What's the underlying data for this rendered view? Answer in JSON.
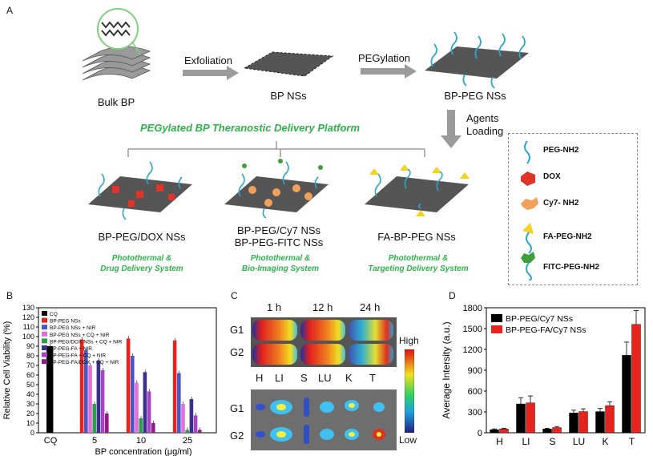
{
  "panelA": {
    "letter": "A",
    "bulk": "Bulk BP",
    "exfoliation": "Exfoliation",
    "bpns": "BP NSs",
    "pegylation": "PEGylation",
    "bppeg": "BP-PEG NSs",
    "agents": "Agents",
    "loading": "Loading",
    "platform": "PEGylated BP Theranostic Delivery Platform",
    "prod1": "BP-PEG/DOX NSs",
    "prod2a": "BP-PEG/Cy7 NSs",
    "prod2b": "BP-PEG-FITC NSs",
    "prod3": "FA-BP-PEG NSs",
    "sys1a": "Photothermal &",
    "sys1b": "Drug Delivery System",
    "sys2a": "Photothermal &",
    "sys2b": "Bio-Imaging System",
    "sys3a": "Photothermal &",
    "sys3b": "Targeting Delivery System",
    "legend": [
      "PEG-NH2",
      "DOX",
      "Cy7- NH2",
      "FA-PEG-NH2",
      "FITC-PEG-NH2"
    ],
    "colors": {
      "green": "#2db34a",
      "dox": "#e0342a",
      "cy7": "#f2a05a",
      "fa": "#f5d21c",
      "fitc": "#3f9e3a",
      "peg": "#2ba8c9"
    }
  },
  "panelB": {
    "letter": "B",
    "legend": [
      "CQ",
      "BP-PEG NSs",
      "BP-PEG NSs + NIR",
      "BP-PEG NSs + CQ + NIR",
      "BP-PEG/DOX NSs + CQ + NIR",
      "BP-PEG-FA + NIR",
      "BP-PEG-FA + CQ + NIR",
      "BP-PEG-FA/DOX + CQ + NIR"
    ]
  },
  "panelC": {
    "letter": "C",
    "times": [
      "1 h",
      "12 h",
      "24 h"
    ],
    "rows": [
      "G1",
      "G2"
    ],
    "organs": [
      "H",
      "LI",
      "S",
      "LU",
      "K",
      "T"
    ],
    "high": "High",
    "low": "Low"
  },
  "panelD": {
    "letter": "D",
    "legend": [
      "BP-PEG/Cy7 NSs",
      "BP-PEG-FA/Cy7 NSs"
    ]
  },
  "chart_data": [
    {
      "type": "bar",
      "title": "",
      "ylabel": "Relative Cell Viability (%)",
      "xlabel": "BP concentration (μg/ml)",
      "ylim": [
        0,
        130
      ],
      "yticks": [
        "0",
        "10",
        "20",
        "30",
        "40",
        "50",
        "60",
        "70",
        "80",
        "90",
        "100",
        "110",
        "120",
        "130"
      ],
      "categories": [
        "CQ",
        "5",
        "10",
        "25"
      ],
      "series": [
        {
          "name": "CQ",
          "color": "#000000",
          "values": [
            90,
            null,
            null,
            null
          ]
        },
        {
          "name": "BP-PEG NSs",
          "color": "#e8231d",
          "values": [
            null,
            97,
            98,
            96
          ]
        },
        {
          "name": "BP-PEG NSs + NIR",
          "color": "#4a57c6",
          "values": [
            null,
            86,
            80,
            62
          ]
        },
        {
          "name": "BP-PEG NSs + CQ + NIR",
          "color": "#e26fd8",
          "values": [
            null,
            70,
            52,
            30
          ]
        },
        {
          "name": "BP-PEG/DOX NSs + CQ + NIR",
          "color": "#2aa04a",
          "values": [
            null,
            30,
            15,
            3
          ]
        },
        {
          "name": "BP-PEG-FA + NIR",
          "color": "#3a2f8c",
          "values": [
            null,
            75,
            63,
            35
          ]
        },
        {
          "name": "BP-PEG-FA + CQ + NIR",
          "color": "#a844c2",
          "values": [
            null,
            65,
            43,
            18
          ]
        },
        {
          "name": "BP-PEG-FA/DOX + CQ + NIR",
          "color": "#8a1f85",
          "values": [
            null,
            20,
            10,
            3
          ]
        }
      ]
    },
    {
      "type": "bar",
      "title": "",
      "ylabel": "Average Intersity (a.u.)",
      "xlabel": "",
      "ylim": [
        0,
        1800
      ],
      "yticks": [
        "0",
        "300",
        "600",
        "900",
        "1200",
        "1500",
        "1800"
      ],
      "categories": [
        "H",
        "LI",
        "S",
        "LU",
        "K",
        "T"
      ],
      "series": [
        {
          "name": "BP-PEG/Cy7 NSs",
          "color": "#000000",
          "values": [
            45,
            415,
            55,
            285,
            305,
            1115
          ],
          "errors": [
            10,
            90,
            10,
            40,
            45,
            190
          ]
        },
        {
          "name": "BP-PEG-FA/Cy7 NSs",
          "color": "#e8231d",
          "values": [
            55,
            430,
            75,
            305,
            390,
            1560
          ],
          "errors": [
            10,
            100,
            15,
            40,
            55,
            200
          ]
        }
      ]
    }
  ]
}
